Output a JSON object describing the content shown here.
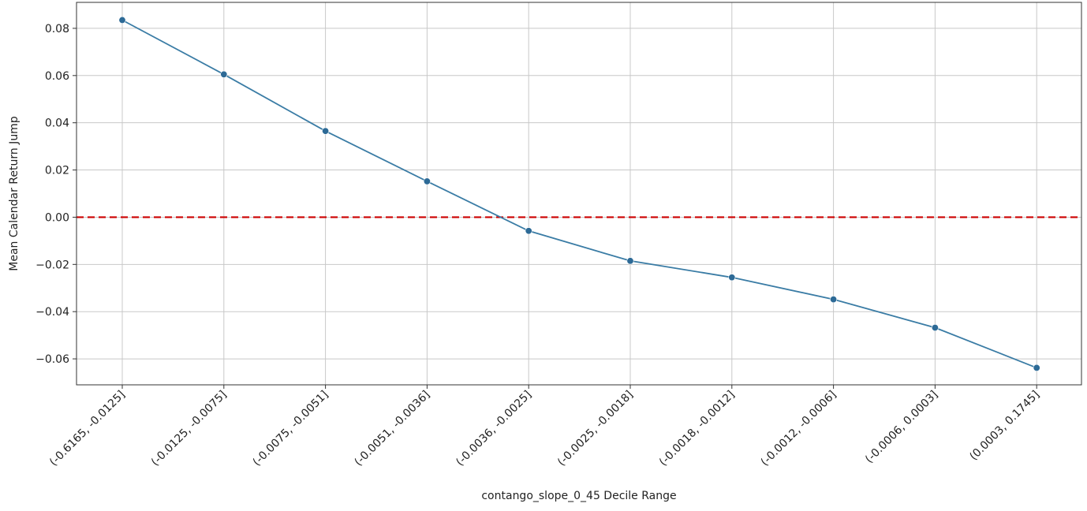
{
  "chart_data": {
    "type": "line",
    "title": "",
    "xlabel": "contango_slope_0_45 Decile Range",
    "ylabel": "Mean Calendar Return Jump",
    "categories": [
      "(-0.6165, -0.0125]",
      "(-0.0125, -0.0075]",
      "(-0.0075, -0.0051]",
      "(-0.0051, -0.0036]",
      "(-0.0036, -0.0025]",
      "(-0.0025, -0.0018]",
      "(-0.0018, -0.0012]",
      "(-0.0012, -0.0006]",
      "(-0.0006, 0.0003]",
      "(0.0003, 0.1745]"
    ],
    "series": [
      {
        "values": [
          0.0835,
          0.0605,
          0.0365,
          0.0152,
          -0.0058,
          -0.0185,
          -0.0255,
          -0.0348,
          -0.0468,
          -0.0638
        ],
        "color": "#3a7ca5"
      }
    ],
    "yticks": [
      0.08,
      0.06,
      0.04,
      0.02,
      0.0,
      -0.02,
      -0.04,
      -0.06
    ],
    "ytick_labels": [
      "0.08",
      "0.06",
      "0.04",
      "0.02",
      "0.00",
      "−0.02",
      "−0.04",
      "−0.06"
    ],
    "ylim": [
      -0.071,
      0.091
    ],
    "grid": true,
    "reference_line": {
      "y": 0.0,
      "color": "#cc0000",
      "style": "dashed"
    },
    "marker": "circle"
  }
}
